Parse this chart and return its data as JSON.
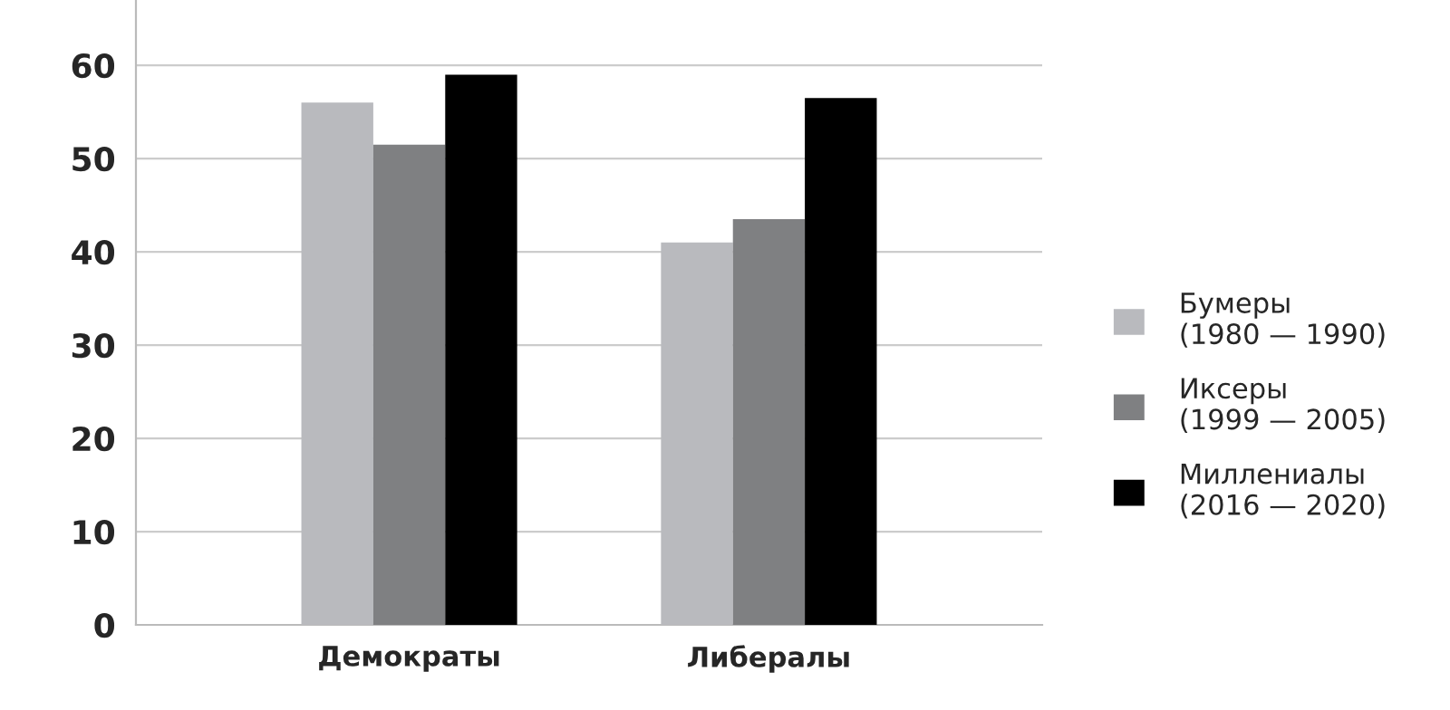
{
  "chart_data": {
    "type": "bar",
    "categories": [
      "Демократы",
      "Либералы"
    ],
    "series": [
      {
        "name": "Бумеры\n(1980 — 1990)",
        "color": "#b9babe",
        "values": [
          56,
          41
        ]
      },
      {
        "name": "Иксеры\n(1999 — 2005)",
        "color": "#7f8082",
        "values": [
          51.5,
          43.5
        ]
      },
      {
        "name": "Миллениалы\n(2016 — 2020)",
        "color": "#000000",
        "values": [
          59,
          56.5
        ]
      }
    ],
    "ylim": [
      0,
      67
    ],
    "yticks": [
      0,
      10,
      20,
      30,
      40,
      50,
      60
    ],
    "grid": "y",
    "legend": "right"
  }
}
